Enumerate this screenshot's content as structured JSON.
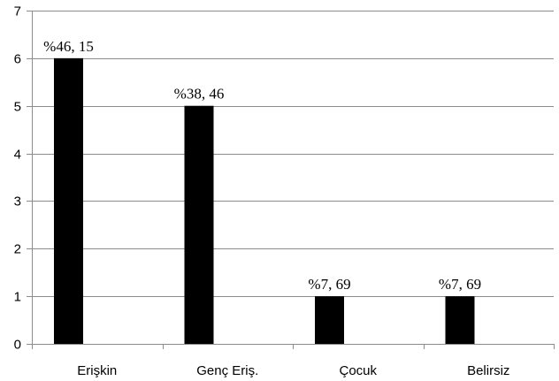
{
  "chart_data": {
    "type": "bar",
    "categories": [
      "Erişkin",
      "Genç Eriş.",
      "Çocuk",
      "Belirsiz"
    ],
    "values": [
      6,
      5,
      1,
      1
    ],
    "data_labels": [
      "%46, 15",
      "%38, 46",
      "%7, 69",
      "%7, 69"
    ],
    "yticks": [
      "0",
      "1",
      "2",
      "3",
      "4",
      "5",
      "6",
      "7"
    ],
    "ylim": [
      0,
      7
    ],
    "grid": true,
    "legend": "none",
    "bar_color": "#000000",
    "gridline_color": "#8c8c8c"
  }
}
